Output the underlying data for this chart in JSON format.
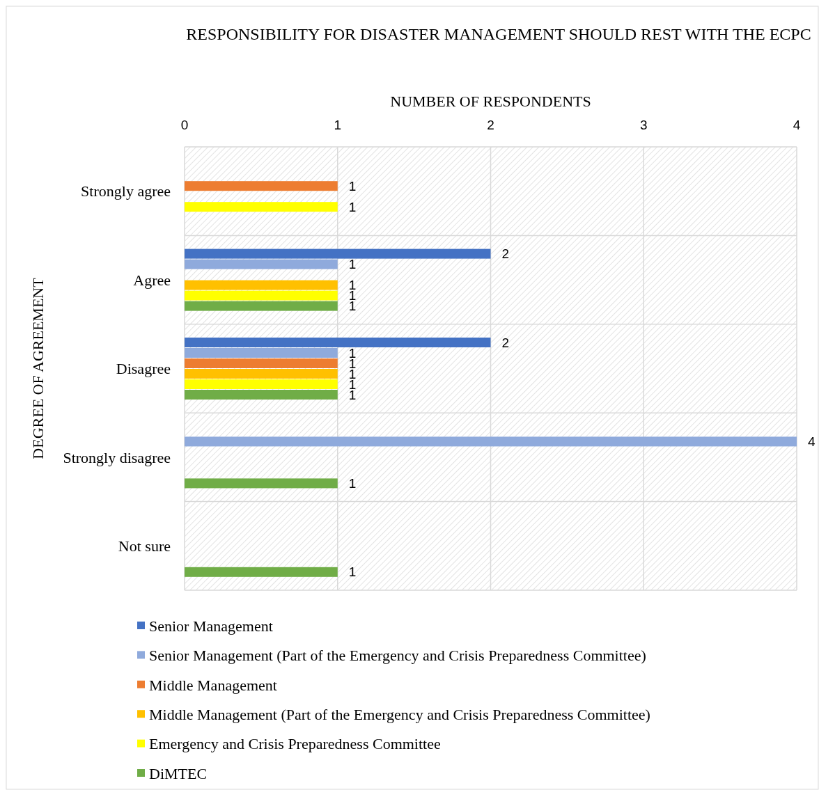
{
  "chart_data": {
    "type": "bar",
    "orientation": "horizontal",
    "title": "RESPONSIBILITY FOR DISASTER MANAGEMENT SHOULD REST WITH THE ECPC",
    "xlabel": "NUMBER OF RESPONDENTS",
    "ylabel": "DEGREE OF AGREEMENT",
    "categories": [
      "Strongly agree",
      "Agree",
      "Disagree",
      "Strongly disagree",
      "Not sure"
    ],
    "series": [
      {
        "name": "Senior Management",
        "color": "#4472c4",
        "values": [
          null,
          2,
          2,
          null,
          null
        ]
      },
      {
        "name": "Senior Management (Part of the Emergency and Crisis Preparedness Committee)",
        "color": "#8faadc",
        "values": [
          null,
          1,
          1,
          4,
          null
        ]
      },
      {
        "name": "Middle Management",
        "color": "#ed7d31",
        "values": [
          1,
          null,
          1,
          null,
          null
        ]
      },
      {
        "name": "Middle Management (Part of the Emergency and Crisis Preparedness Committee)",
        "color": "#ffc000",
        "values": [
          null,
          1,
          1,
          null,
          null
        ]
      },
      {
        "name": "Emergency and Crisis Preparedness Committee",
        "color": "#ffff00",
        "values": [
          1,
          1,
          1,
          null,
          null
        ]
      },
      {
        "name": "DiMTEC",
        "color": "#70ad47",
        "values": [
          null,
          1,
          1,
          1,
          1
        ]
      }
    ],
    "xlim": [
      0,
      4
    ],
    "xticks": [
      0,
      1,
      2,
      3,
      4
    ],
    "grid": true,
    "data_labels": true,
    "legend": "bottom"
  }
}
